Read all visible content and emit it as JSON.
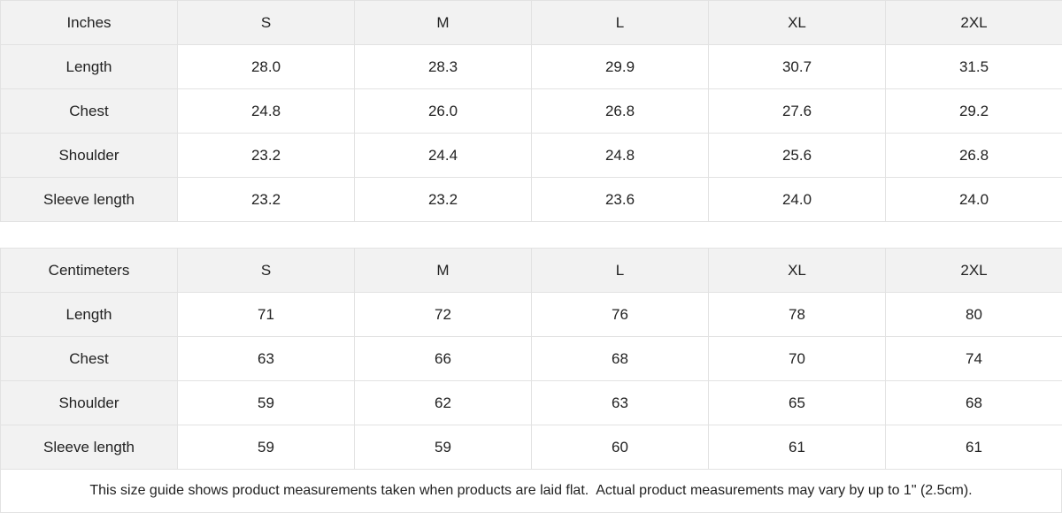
{
  "tables": [
    {
      "header": [
        "Inches",
        "S",
        "M",
        "L",
        "XL",
        "2XL"
      ],
      "rows": [
        [
          "Length",
          "28.0",
          "28.3",
          "29.9",
          "30.7",
          "31.5"
        ],
        [
          "Chest",
          "24.8",
          "26.0",
          "26.8",
          "27.6",
          "29.2"
        ],
        [
          "Shoulder",
          "23.2",
          "24.4",
          "24.8",
          "25.6",
          "26.8"
        ],
        [
          "Sleeve length",
          "23.2",
          "23.2",
          "23.6",
          "24.0",
          "24.0"
        ]
      ]
    },
    {
      "header": [
        "Centimeters",
        "S",
        "M",
        "L",
        "XL",
        "2XL"
      ],
      "rows": [
        [
          "Length",
          "71",
          "72",
          "76",
          "78",
          "80"
        ],
        [
          "Chest",
          "63",
          "66",
          "68",
          "70",
          "74"
        ],
        [
          "Shoulder",
          "59",
          "62",
          "63",
          "65",
          "68"
        ],
        [
          "Sleeve length",
          "59",
          "59",
          "60",
          "61",
          "61"
        ]
      ]
    }
  ],
  "note": "This size guide shows product measurements taken when products are laid flat.  Actual product measurements may vary by up to 1\" (2.5cm)."
}
